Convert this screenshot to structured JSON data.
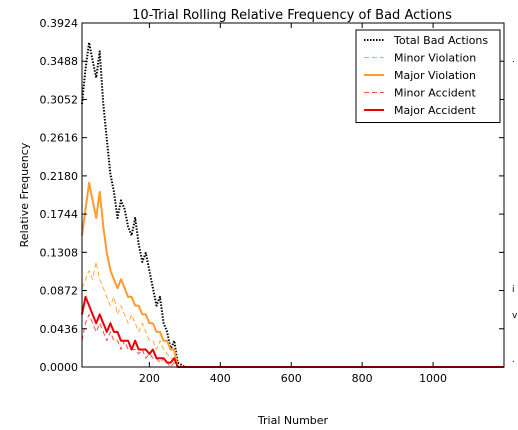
{
  "chart_data": {
    "type": "line",
    "title": "10-Trial Rolling Relative Frequency of Bad Actions",
    "xlabel": "Trial Number",
    "ylabel": "Relative Frequency",
    "xlim": [
      10,
      1200
    ],
    "ylim": [
      0,
      0.3924
    ],
    "x_ticks": [
      200,
      400,
      600,
      800,
      1000
    ],
    "x_tick_labels": [
      "200",
      "400",
      "600",
      "800",
      "1000"
    ],
    "y_ticks": [
      0.0,
      0.0436,
      0.0872,
      0.1308,
      0.1744,
      0.218,
      0.2616,
      0.3052,
      0.3488,
      0.3924
    ],
    "y_tick_labels": [
      "0.0000",
      "0.0436",
      "0.0872",
      "0.1308",
      "0.1744",
      "0.2180",
      "0.2616",
      "0.3052",
      "0.3488",
      "0.3924"
    ],
    "grid": false,
    "legend_position": "top-right",
    "x": [
      10,
      20,
      30,
      40,
      50,
      60,
      70,
      80,
      90,
      100,
      110,
      120,
      130,
      140,
      150,
      160,
      170,
      180,
      190,
      200,
      210,
      220,
      230,
      240,
      250,
      260,
      270,
      280,
      300,
      400,
      600,
      800,
      1000,
      1200
    ],
    "series": [
      {
        "name": "Total Bad Actions",
        "color": "#000000",
        "style": "dotted",
        "values": [
          0.3,
          0.34,
          0.37,
          0.35,
          0.33,
          0.36,
          0.3,
          0.26,
          0.22,
          0.2,
          0.17,
          0.19,
          0.18,
          0.16,
          0.15,
          0.17,
          0.14,
          0.12,
          0.13,
          0.11,
          0.09,
          0.07,
          0.08,
          0.05,
          0.04,
          0.02,
          0.03,
          0.005,
          0.0,
          0.0,
          0.0,
          0.0,
          0.0,
          0.0
        ]
      },
      {
        "name": "Minor Violation",
        "color": "#ffa940",
        "style": "dashed",
        "values": [
          0.09,
          0.1,
          0.11,
          0.1,
          0.12,
          0.1,
          0.09,
          0.08,
          0.07,
          0.08,
          0.06,
          0.07,
          0.06,
          0.05,
          0.06,
          0.05,
          0.04,
          0.05,
          0.04,
          0.03,
          0.03,
          0.02,
          0.03,
          0.02,
          0.015,
          0.01,
          0.01,
          0.0,
          0.0,
          0.0,
          0.0,
          0.0,
          0.0,
          0.0
        ]
      },
      {
        "name": "Major Violation",
        "color": "#ff9a2e",
        "style": "solid",
        "values": [
          0.15,
          0.18,
          0.21,
          0.19,
          0.17,
          0.2,
          0.16,
          0.13,
          0.11,
          0.1,
          0.09,
          0.1,
          0.09,
          0.08,
          0.08,
          0.07,
          0.07,
          0.06,
          0.06,
          0.05,
          0.05,
          0.04,
          0.04,
          0.03,
          0.03,
          0.02,
          0.02,
          0.0,
          0.0,
          0.0,
          0.0,
          0.0,
          0.0,
          0.0
        ]
      },
      {
        "name": "Minor Accident",
        "color": "#ff4d4d",
        "style": "dashed",
        "values": [
          0.03,
          0.05,
          0.06,
          0.05,
          0.04,
          0.05,
          0.04,
          0.03,
          0.04,
          0.03,
          0.03,
          0.02,
          0.03,
          0.02,
          0.02,
          0.02,
          0.015,
          0.02,
          0.01,
          0.015,
          0.01,
          0.01,
          0.005,
          0.01,
          0.005,
          0.0,
          0.005,
          0.0,
          0.0,
          0.0,
          0.0,
          0.0,
          0.0,
          0.0
        ]
      },
      {
        "name": "Major Accident",
        "color": "#ee0000",
        "style": "solid",
        "values": [
          0.06,
          0.08,
          0.07,
          0.06,
          0.05,
          0.06,
          0.05,
          0.04,
          0.05,
          0.04,
          0.04,
          0.03,
          0.03,
          0.03,
          0.02,
          0.03,
          0.02,
          0.02,
          0.02,
          0.015,
          0.02,
          0.01,
          0.01,
          0.01,
          0.005,
          0.005,
          0.01,
          0.0,
          0.0,
          0.0,
          0.0,
          0.0,
          0.0,
          0.0
        ]
      }
    ]
  },
  "edge_glyphs": [
    ".",
    "i",
    "v",
    "."
  ]
}
